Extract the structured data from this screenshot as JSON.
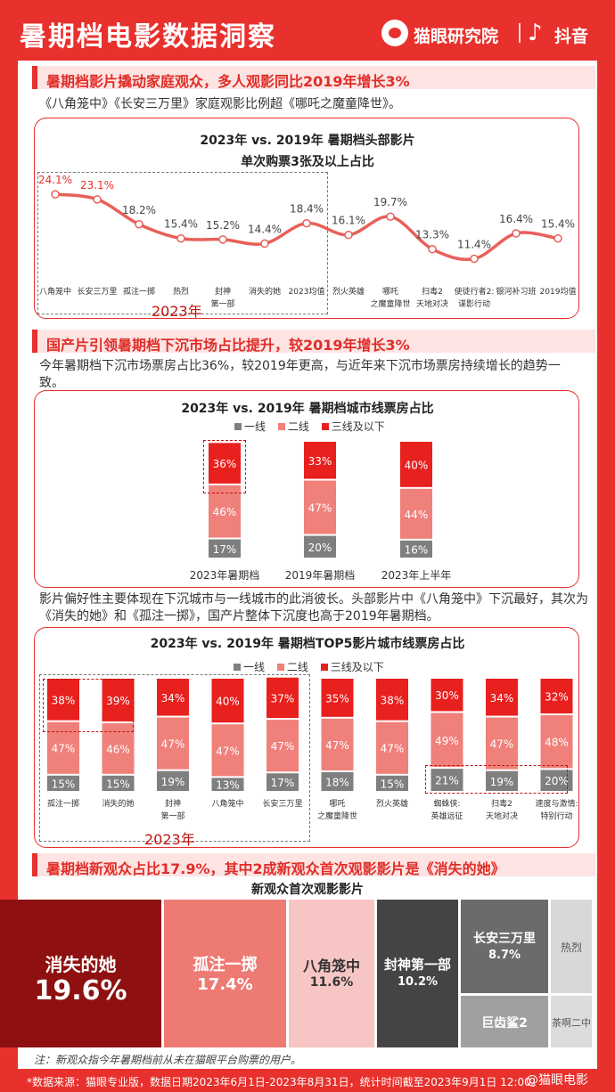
{
  "header": {
    "title": "暑期档电影数据洞察",
    "brand1": "猫眼研究院",
    "brand2": "抖音"
  },
  "section1": {
    "heading": "暑期档影片撬动家庭观众，多人观影同比2019年增长3%",
    "text": "《八角笼中》《长安三万里》家庭观影比例超《哪吒之魔童降世》。"
  },
  "section2": {
    "heading": "国产片引领暑期档下沉市场占比提升，较2019年增长3%",
    "text": "今年暑期档下沉市场票房占比36%，较2019年更高，与近年来下沉市场票房持续增长的趋势一致。"
  },
  "section3": {
    "text": "影片偏好性主要体现在下沉城市与一线城市的此消彼长。头部影片中《八角笼中》下沉最好，其次为《消失的她》和《孤注一掷》，国产片整体下沉度也高于2019年暑期档。"
  },
  "section4": {
    "heading": "暑期档新观众占比17.9%，其中2成新观众首次观影影片是《消失的她》"
  },
  "year_label": "2023年",
  "footnote": "注：新观众指今年暑期档前从未在猫眼平台购票的用户。",
  "source": "*数据来源：猫眼专业版，数据日期2023年6月1日-2023年8月31日，统计时间截至2023年9月1日 12:00。",
  "watermark": "@猫眼电影",
  "colors": {
    "red": "#e8302c",
    "tier1": "#7f7f7f",
    "tier2": "#f0807a",
    "tier3": "#e8201e",
    "line": "#e8605a"
  },
  "chart_data": [
    {
      "type": "line",
      "title": "2023年 vs. 2019年 暑期档头部影片",
      "subtitle": "单次购票3张及以上占比",
      "categories": [
        "八角笼中",
        "长安三万里",
        "孤注一掷",
        "热烈",
        "封神\n第一部",
        "消失的她",
        "2023均值",
        "烈火英雄",
        "哪吒\n之魔童降世",
        "扫毒2\n天地对决",
        "使徒行者2:\n谍影行动",
        "银河补习班",
        "2019均值"
      ],
      "values": [
        24.1,
        23.1,
        18.2,
        15.4,
        15.2,
        14.4,
        18.4,
        16.1,
        19.7,
        13.3,
        11.4,
        16.4,
        15.4
      ],
      "labels": [
        "24.1%",
        "23.1%",
        "18.2%",
        "15.4%",
        "15.2%",
        "14.4%",
        "18.4%",
        "16.1%",
        "19.7%",
        "13.3%",
        "11.4%",
        "16.4%",
        "15.4%"
      ],
      "grid": false
    },
    {
      "type": "bar",
      "stacked": true,
      "title": "2023年 vs. 2019年 暑期档城市线票房占比",
      "legend": [
        "一线",
        "二线",
        "三线及以下"
      ],
      "legend_position": "top",
      "categories": [
        "2023年暑期档",
        "2019年暑期档",
        "2023年上半年"
      ],
      "series": [
        {
          "name": "一线",
          "values": [
            17,
            20,
            16
          ],
          "labels": [
            "17%",
            "20%",
            "16%"
          ]
        },
        {
          "name": "二线",
          "values": [
            46,
            47,
            44
          ],
          "labels": [
            "46%",
            "47%",
            "44%"
          ]
        },
        {
          "name": "三线及以下",
          "values": [
            36,
            33,
            40
          ],
          "labels": [
            "36%",
            "33%",
            "40%"
          ]
        }
      ]
    },
    {
      "type": "bar",
      "stacked": true,
      "title": "2023年 vs. 2019年 暑期档TOP5影片城市线票房占比",
      "legend": [
        "一线",
        "二线",
        "三线及以下"
      ],
      "legend_position": "top",
      "categories": [
        "孤注一掷",
        "消失的她",
        "封神\n第一部",
        "八角笼中",
        "长安三万里",
        "哪吒\n之魔童降世",
        "烈火英雄",
        "蜘蛛侠:\n英雄远征",
        "扫毒2\n天地对决",
        "速度与激情:\n特别行动"
      ],
      "series": [
        {
          "name": "一线",
          "values": [
            15,
            15,
            19,
            13,
            17,
            18,
            15,
            21,
            19,
            20
          ],
          "labels": [
            "15%",
            "15%",
            "19%",
            "13%",
            "17%",
            "18%",
            "15%",
            "21%",
            "19%",
            "20%"
          ]
        },
        {
          "name": "二线",
          "values": [
            47,
            46,
            47,
            47,
            47,
            47,
            47,
            49,
            47,
            48
          ],
          "labels": [
            "47%",
            "46%",
            "47%",
            "47%",
            "47%",
            "47%",
            "47%",
            "49%",
            "47%",
            "48%"
          ]
        },
        {
          "name": "三线及以下",
          "values": [
            38,
            39,
            34,
            40,
            37,
            35,
            38,
            30,
            34,
            32
          ],
          "labels": [
            "38%",
            "39%",
            "34%",
            "40%",
            "37%",
            "35%",
            "38%",
            "30%",
            "34%",
            "32%"
          ]
        }
      ]
    },
    {
      "type": "treemap",
      "title": "新观众首次观影影片",
      "items": [
        {
          "name": "消失的她",
          "value": 19.6,
          "label": "19.6%",
          "color": "#8e1010"
        },
        {
          "name": "孤注一掷",
          "value": 17.4,
          "label": "17.4%",
          "color": "#ee7a74"
        },
        {
          "name": "八角笼中",
          "value": 11.6,
          "label": "11.6%",
          "color": "#f7c6c4"
        },
        {
          "name": "封神第一部",
          "value": 10.2,
          "label": "10.2%",
          "color": "#444444"
        },
        {
          "name": "长安三万里",
          "value": 8.7,
          "label": "8.7%",
          "color": "#6b6b6b"
        },
        {
          "name": "热烈",
          "label": "",
          "color": "#d8d8d8"
        },
        {
          "name": "巨齿鲨2",
          "label": "",
          "color": "#a0a0a0"
        },
        {
          "name": "茶啊二中",
          "label": "",
          "color": "#dcdcdc"
        }
      ]
    }
  ]
}
